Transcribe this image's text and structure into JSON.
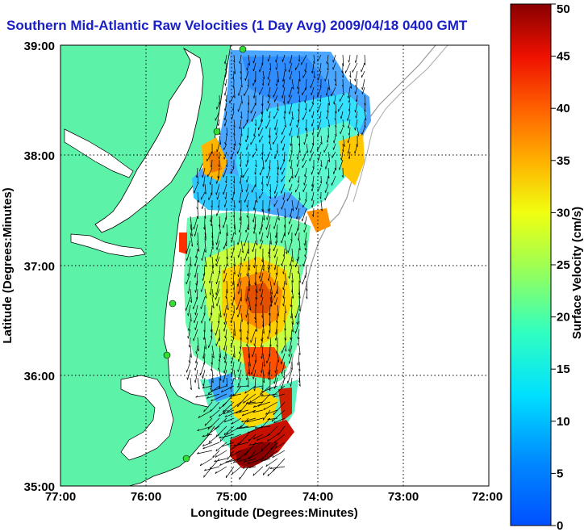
{
  "title": "Southern Mid-Atlantic Raw Velocities (1 Day Avg) 2009/04/18 0400 GMT",
  "map": {
    "xlabel": "Longitude (Degrees:Minutes)",
    "ylabel": "Latitude (Degrees:Minutes)",
    "x_ticks": [
      "77:00",
      "76:00",
      "75:00",
      "74:00",
      "73:00",
      "72:00"
    ],
    "y_ticks": [
      "39:00",
      "38:00",
      "37:00",
      "36:00",
      "35:00"
    ],
    "x_range_deg": [
      -77,
      -72
    ],
    "y_range_deg": [
      35,
      39
    ],
    "grid": "dotted",
    "land_color": "#5cf2a8",
    "station_color": "#33dd33"
  },
  "colorbar": {
    "label": "Surface Velocity (cm/s)",
    "ticks": [
      "0",
      "5",
      "10",
      "15",
      "20",
      "25",
      "30",
      "35",
      "40",
      "45",
      "50"
    ],
    "range": [
      0,
      50
    ],
    "colormap": "jet"
  }
}
